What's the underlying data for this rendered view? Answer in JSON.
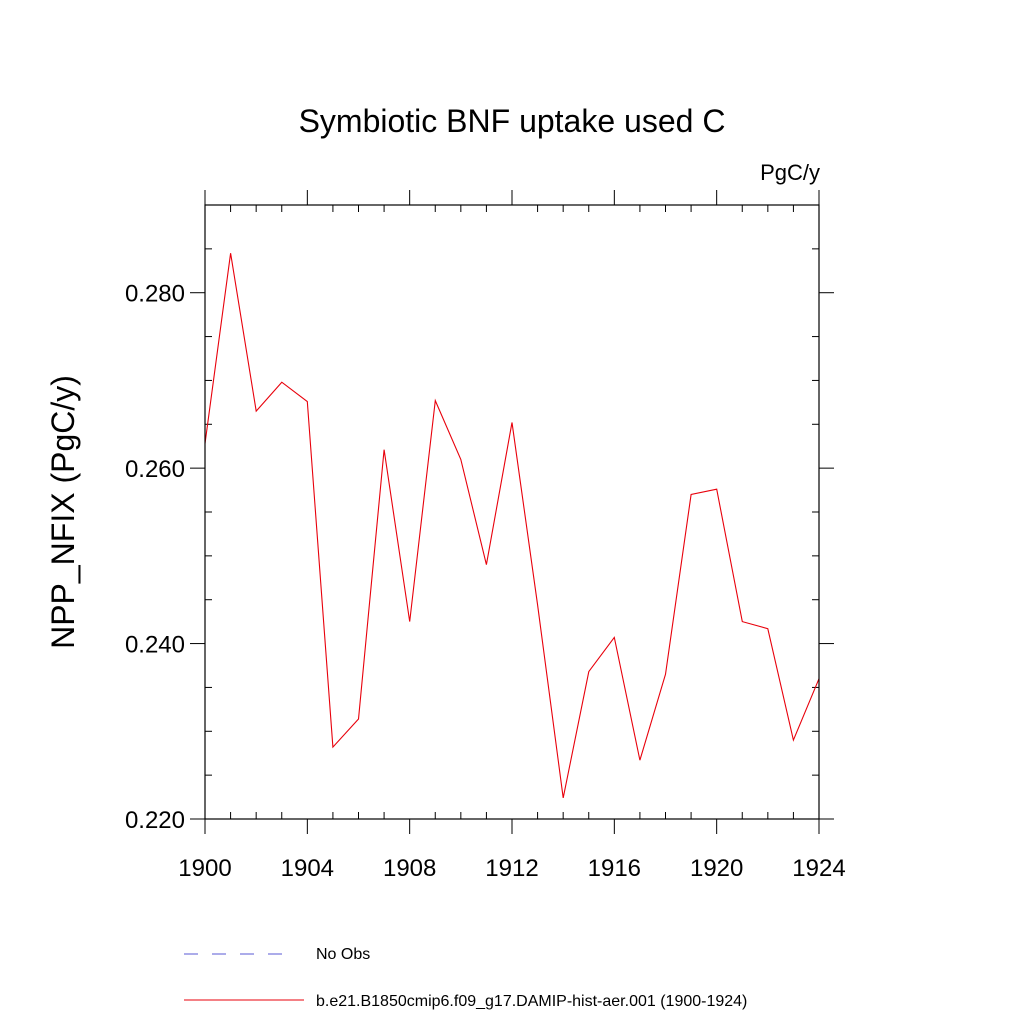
{
  "chart_data": {
    "type": "line",
    "title": "Symbiotic BNF uptake used C",
    "units_label": "PgC/y",
    "ylabel": "NPP_NFIX  (PgC/y)",
    "xlabel": "",
    "xlim": [
      1900,
      1924
    ],
    "ylim": [
      0.22,
      0.29
    ],
    "x_ticks": [
      1900,
      1904,
      1908,
      1912,
      1916,
      1920,
      1924
    ],
    "x_tick_labels": [
      "1900",
      "1904",
      "1908",
      "1912",
      "1916",
      "1920",
      "1924"
    ],
    "y_ticks": [
      0.22,
      0.24,
      0.26,
      0.28
    ],
    "y_tick_labels": [
      "0.220",
      "0.240",
      "0.260",
      "0.280"
    ],
    "y_minor_step": 0.005,
    "x_minor_step": 1,
    "grid": false,
    "legend_position": "bottom",
    "legend": [
      {
        "label": "No Obs",
        "color": "#5a5ad6",
        "style": "dashed"
      },
      {
        "label": "b.e21.B1850cmip6.f09_g17.DAMIP-hist-aer.001 (1900-1924)",
        "color": "#e8000b",
        "style": "solid"
      }
    ],
    "series": [
      {
        "name": "b.e21.B1850cmip6.f09_g17.DAMIP-hist-aer.001 (1900-1924)",
        "color": "#e8000b",
        "x": [
          1900,
          1901,
          1902,
          1903,
          1904,
          1905,
          1906,
          1907,
          1908,
          1909,
          1910,
          1911,
          1912,
          1913,
          1914,
          1915,
          1916,
          1917,
          1918,
          1919,
          1920,
          1921,
          1922,
          1923,
          1924
        ],
        "y": [
          0.2628,
          0.2845,
          0.2665,
          0.2698,
          0.2676,
          0.2282,
          0.2314,
          0.2621,
          0.2425,
          0.2677,
          0.261,
          0.249,
          0.2652,
          0.2444,
          0.2224,
          0.2368,
          0.2407,
          0.2267,
          0.2365,
          0.257,
          0.2576,
          0.2425,
          0.2417,
          0.229,
          0.236
        ]
      }
    ]
  }
}
